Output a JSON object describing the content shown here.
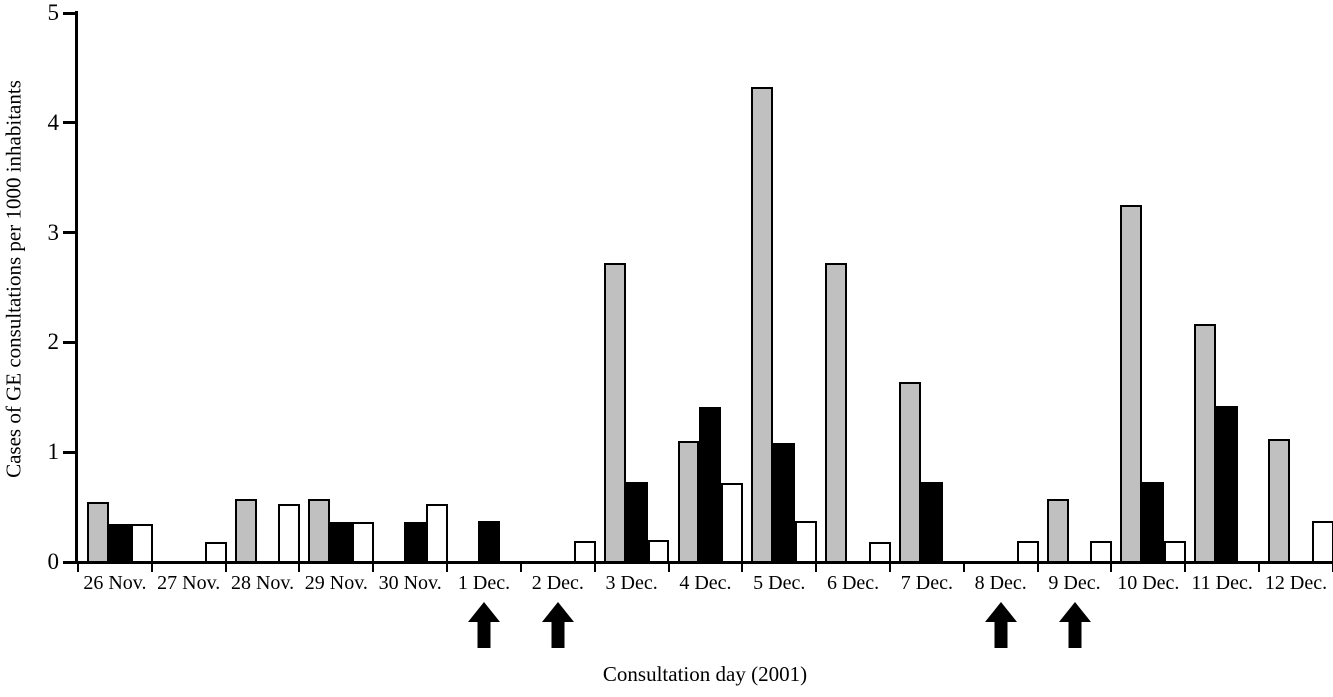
{
  "figure": {
    "background": "#ffffff",
    "axis_color": "#000000"
  },
  "chart_data": {
    "type": "bar",
    "title": "",
    "xlabel": "Consultation day (2001)",
    "ylabel": "Cases of GE consultations per 1000 inhabitants",
    "ylim": [
      0,
      5
    ],
    "y_ticks": [
      0,
      1,
      2,
      3,
      4,
      5
    ],
    "grid": false,
    "legend_position": "none",
    "categories": [
      "26 Nov.",
      "27 Nov.",
      "28 Nov.",
      "29 Nov.",
      "30 Nov.",
      "1 Dec.",
      "2 Dec.",
      "3 Dec.",
      "4 Dec.",
      "5 Dec.",
      "6 Dec.",
      "7 Dec.",
      "8 Dec.",
      "9 Dec.",
      "10 Dec.",
      "11 Dec.",
      "12 Dec."
    ],
    "series": [
      {
        "name": "gray-series",
        "color": "#c0c0c0",
        "values": [
          0.55,
          0,
          0.57,
          0.57,
          0,
          0,
          0,
          2.72,
          1.1,
          4.33,
          2.72,
          1.64,
          0,
          0.57,
          3.25,
          2.17,
          1.12
        ]
      },
      {
        "name": "black-series",
        "color": "#000000",
        "values": [
          0.35,
          0,
          0,
          0.36,
          0.36,
          0.37,
          0,
          0.73,
          1.41,
          1.08,
          0,
          0.73,
          0,
          0,
          0.73,
          1.42,
          0
        ]
      },
      {
        "name": "white-series",
        "color": "#ffffff",
        "values": [
          0.35,
          0.18,
          0.53,
          0.36,
          0.53,
          0,
          0.19,
          0.2,
          0.72,
          0.37,
          0.18,
          0,
          0.19,
          0.19,
          0.19,
          0,
          0.37
        ]
      }
    ],
    "annotations": {
      "arrow_symbol": "up-arrow",
      "arrow_categories": [
        "1 Dec.",
        "2 Dec.",
        "8 Dec.",
        "9 Dec."
      ]
    }
  }
}
